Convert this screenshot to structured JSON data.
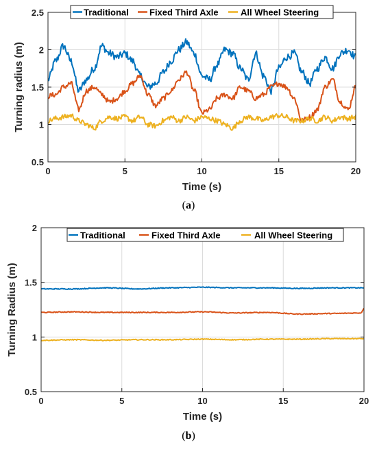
{
  "colors": {
    "traditional": "#0072BD",
    "fixed": "#D95319",
    "aws": "#EDB120",
    "grid": "#DCDCDC",
    "axis": "#262626"
  },
  "chart_data": [
    {
      "type": "line",
      "caption_open": "(",
      "caption_letter": "a",
      "caption_close": ")",
      "xlabel": "Time (s)",
      "ylabel": "Turning radius (m)",
      "xlim": [
        0,
        20
      ],
      "ylim": [
        0.5,
        2.5
      ],
      "xticks": [
        0,
        5,
        10,
        15,
        20
      ],
      "yticks": [
        0.5,
        1,
        1.5,
        2,
        2.5
      ],
      "xtick_labels": [
        "0",
        "5",
        "10",
        "15",
        "20"
      ],
      "ytick_labels": [
        "0.5",
        "1",
        "1.5",
        "2",
        "2.5"
      ],
      "grid": true,
      "legend_position": "top",
      "series": [
        {
          "name": "Traditional",
          "color_key": "traditional",
          "x": [
            0,
            0.5,
            1,
            1.5,
            2,
            2.5,
            3,
            3.5,
            4,
            4.5,
            5,
            5.5,
            6,
            6.5,
            7,
            7.5,
            8,
            8.5,
            9,
            9.5,
            10,
            10.5,
            11,
            11.5,
            12,
            12.5,
            13,
            13.5,
            14,
            14.5,
            15,
            15.5,
            16,
            16.5,
            17,
            17.5,
            18,
            18.5,
            19,
            19.5,
            20
          ],
          "y": [
            1.6,
            1.85,
            2.05,
            1.85,
            1.45,
            1.6,
            1.75,
            2.05,
            1.95,
            1.9,
            1.95,
            1.85,
            1.65,
            1.5,
            1.55,
            1.7,
            1.85,
            2.0,
            2.1,
            1.95,
            1.65,
            1.6,
            1.8,
            2.0,
            1.95,
            1.75,
            1.6,
            1.95,
            1.65,
            1.45,
            1.75,
            1.9,
            1.95,
            1.7,
            1.55,
            1.75,
            1.9,
            1.75,
            1.95,
            2.0,
            1.9
          ],
          "noise": 0.05
        },
        {
          "name": "Fixed Third Axle",
          "color_key": "fixed",
          "x": [
            0,
            0.5,
            1,
            1.5,
            2,
            2.5,
            3,
            3.5,
            4,
            4.5,
            5,
            5.5,
            6,
            6.5,
            7,
            7.5,
            8,
            8.5,
            9,
            9.5,
            10,
            10.5,
            11,
            11.5,
            12,
            12.5,
            13,
            13.5,
            14,
            14.5,
            15,
            15.5,
            16,
            16.5,
            17,
            17.5,
            18,
            18.5,
            19,
            19.5,
            20
          ],
          "y": [
            1.38,
            1.4,
            1.5,
            1.55,
            1.2,
            1.45,
            1.5,
            1.4,
            1.3,
            1.35,
            1.45,
            1.55,
            1.65,
            1.4,
            1.25,
            1.35,
            1.45,
            1.6,
            1.7,
            1.45,
            1.15,
            1.2,
            1.35,
            1.4,
            1.35,
            1.5,
            1.45,
            1.35,
            1.4,
            1.5,
            1.55,
            1.5,
            1.35,
            1.05,
            1.1,
            1.2,
            1.5,
            1.6,
            1.3,
            1.2,
            1.5
          ],
          "noise": 0.035
        },
        {
          "name": "All Wheel Steering",
          "color_key": "aws",
          "x": [
            0,
            0.5,
            1,
            1.5,
            2,
            2.5,
            3,
            3.5,
            4,
            4.5,
            5,
            5.5,
            6,
            6.5,
            7,
            7.5,
            8,
            8.5,
            9,
            9.5,
            10,
            10.5,
            11,
            11.5,
            12,
            12.5,
            13,
            13.5,
            14,
            14.5,
            15,
            15.5,
            16,
            16.5,
            17,
            17.5,
            18,
            18.5,
            19,
            19.5,
            20
          ],
          "y": [
            1.05,
            1.08,
            1.1,
            1.12,
            1.05,
            1.0,
            0.95,
            1.05,
            1.1,
            1.08,
            1.1,
            1.05,
            1.1,
            1.0,
            0.98,
            1.05,
            1.1,
            1.05,
            1.1,
            1.05,
            1.1,
            1.08,
            1.05,
            1.0,
            0.95,
            1.05,
            1.1,
            1.08,
            1.05,
            1.1,
            1.12,
            1.1,
            1.05,
            1.05,
            1.08,
            1.05,
            1.1,
            1.05,
            1.1,
            1.08,
            1.1
          ],
          "noise": 0.035
        }
      ]
    },
    {
      "type": "line",
      "caption_open": "(",
      "caption_letter": "b",
      "caption_close": ")",
      "xlabel": "Time (s)",
      "ylabel": "Turning Radius (m)",
      "xlim": [
        0,
        20
      ],
      "ylim": [
        0.5,
        2
      ],
      "xticks": [
        0,
        5,
        10,
        15,
        20
      ],
      "yticks": [
        0.5,
        1,
        1.5,
        2
      ],
      "xtick_labels": [
        "0",
        "5",
        "10",
        "15",
        "20"
      ],
      "ytick_labels": [
        "0.5",
        "1",
        "1.5",
        "2"
      ],
      "grid": true,
      "legend_position": "top",
      "series": [
        {
          "name": "Traditional",
          "color_key": "traditional",
          "x": [
            0,
            2,
            4,
            6,
            8,
            10,
            12,
            14,
            16,
            18,
            20
          ],
          "y": [
            1.44,
            1.44,
            1.45,
            1.44,
            1.45,
            1.455,
            1.45,
            1.45,
            1.445,
            1.45,
            1.45
          ],
          "noise": 0.004
        },
        {
          "name": "Fixed Third Axle",
          "color_key": "fixed",
          "x": [
            0,
            2,
            4,
            6,
            8,
            10,
            12,
            14,
            16,
            18,
            19.8,
            20
          ],
          "y": [
            1.225,
            1.23,
            1.225,
            1.225,
            1.225,
            1.23,
            1.22,
            1.225,
            1.21,
            1.215,
            1.22,
            1.26
          ],
          "noise": 0.004
        },
        {
          "name": "All Wheel Steering",
          "color_key": "aws",
          "x": [
            0,
            2,
            4,
            6,
            8,
            10,
            12,
            14,
            16,
            18,
            20
          ],
          "y": [
            0.97,
            0.975,
            0.97,
            0.975,
            0.975,
            0.98,
            0.975,
            0.98,
            0.98,
            0.985,
            0.985
          ],
          "noise": 0.004
        }
      ]
    }
  ]
}
